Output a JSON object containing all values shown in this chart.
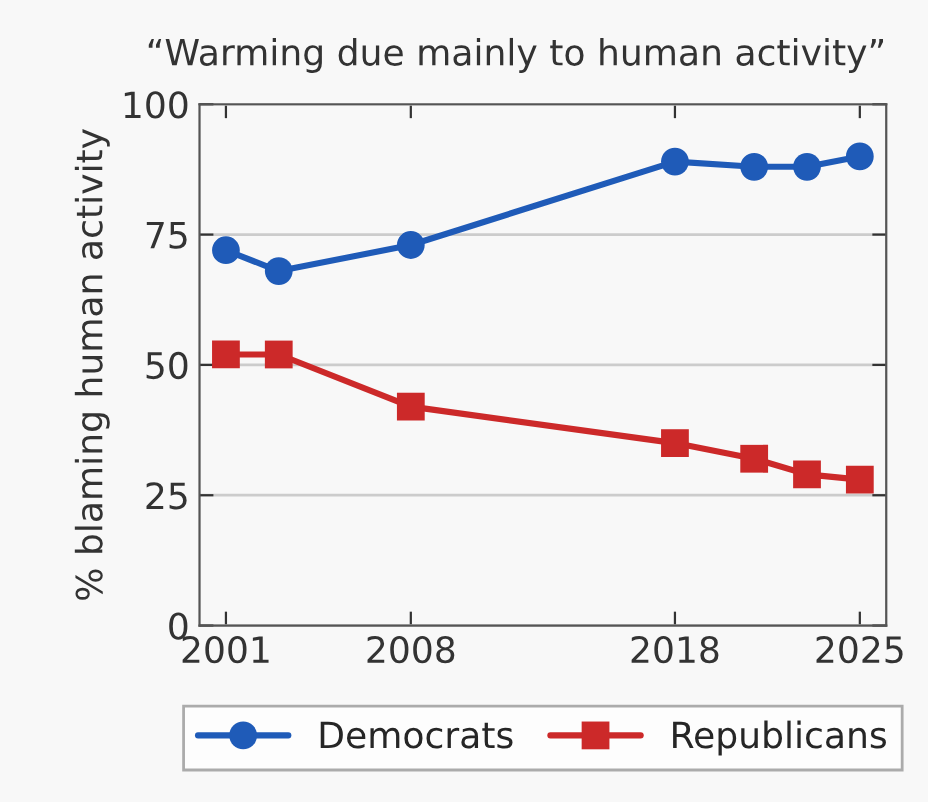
{
  "chart_data": {
    "type": "line",
    "title": "“Warming due mainly to human activity”",
    "ylabel": "% blaming human activity",
    "x": [
      2001,
      2003,
      2008,
      2018,
      2021,
      2023,
      2025
    ],
    "series": [
      {
        "name": "Democrats",
        "color": "#1f5bb8",
        "values": [
          72,
          68,
          73,
          89,
          88,
          88,
          90
        ],
        "marker": "circle"
      },
      {
        "name": "Republicans",
        "color": "#cc2929",
        "values": [
          52,
          52,
          42,
          35,
          32,
          29,
          28
        ],
        "marker": "square"
      }
    ],
    "xlim": [
      2000,
      2026
    ],
    "xticks": [
      2001,
      2008,
      2018,
      2025
    ],
    "ylim": [
      0,
      100
    ],
    "yticks": [
      0,
      25,
      50,
      75,
      100
    ],
    "grid": "y",
    "legend": "bottom",
    "line_style": "solid"
  }
}
